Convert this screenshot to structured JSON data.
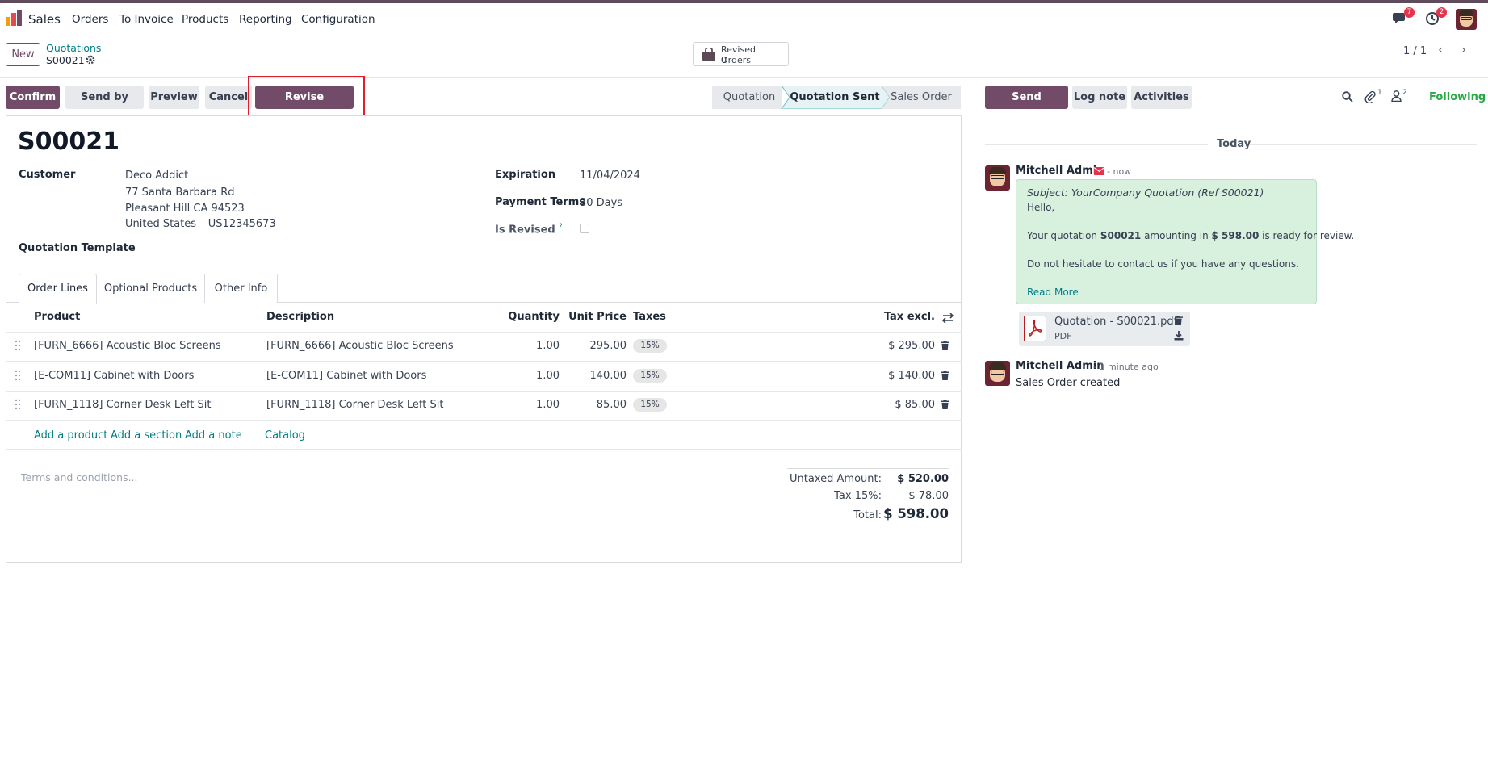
{
  "navbar": {
    "app_name": "Sales",
    "menu": [
      "Orders",
      "To Invoice",
      "Products",
      "Reporting",
      "Configuration"
    ],
    "messages_badge": "7",
    "activities_badge": "2"
  },
  "control_panel": {
    "new_label": "New",
    "breadcrumb_parent": "Quotations",
    "breadcrumb_current": "S00021",
    "smart_button_label": "Revised Orders",
    "smart_button_value": "0",
    "pager": "1 / 1"
  },
  "actions": {
    "confirm": "Confirm",
    "send_by_email": "Send by Email",
    "preview": "Preview",
    "cancel": "Cancel",
    "revise_quotation": "Revise Quotation"
  },
  "statusbar": [
    "Quotation",
    "Quotation Sent",
    "Sales Order"
  ],
  "form": {
    "title": "S00021",
    "customer_label": "Customer",
    "customer_name": "Deco Addict",
    "address_1": "77 Santa Barbara Rd",
    "address_2": "Pleasant Hill CA 94523",
    "address_3": "United States – US12345673",
    "template_label": "Quotation Template",
    "expiration_label": "Expiration",
    "expiration_value": "11/04/2024",
    "payment_terms_label": "Payment Terms",
    "payment_terms_value": "30 Days",
    "is_revised_label": "Is Revised",
    "help_mark": "?"
  },
  "tabs": [
    "Order Lines",
    "Optional Products",
    "Other Info"
  ],
  "table": {
    "headers": [
      "Product",
      "Description",
      "Quantity",
      "Unit Price",
      "Taxes",
      "Tax excl."
    ],
    "rows": [
      {
        "product": "[FURN_6666] Acoustic Bloc Screens",
        "description": "[FURN_6666] Acoustic Bloc Screens",
        "quantity": "1.00",
        "unit_price": "295.00",
        "tax": "15%",
        "subtotal": "$ 295.00"
      },
      {
        "product": "[E-COM11] Cabinet with Doors",
        "description": "[E-COM11] Cabinet with Doors",
        "quantity": "1.00",
        "unit_price": "140.00",
        "tax": "15%",
        "subtotal": "$ 140.00"
      },
      {
        "product": "[FURN_1118] Corner Desk Left Sit",
        "description": "[FURN_1118] Corner Desk Left Sit",
        "quantity": "1.00",
        "unit_price": "85.00",
        "tax": "15%",
        "subtotal": "$ 85.00"
      }
    ],
    "add_product": "Add a product",
    "add_section": "Add a section",
    "add_note": "Add a note",
    "catalog": "Catalog"
  },
  "footer": {
    "terms_placeholder": "Terms and conditions...",
    "untaxed_label": "Untaxed Amount:",
    "untaxed_value": "$ 520.00",
    "tax_label": "Tax 15%:",
    "tax_value": "$ 78.00",
    "total_label": "Total:",
    "total_value": "$ 598.00"
  },
  "chatter": {
    "send_message": "Send message",
    "log_note": "Log note",
    "activities": "Activities",
    "attachments_count": "1",
    "followers_count": "2",
    "following": "Following",
    "today": "Today",
    "message1": {
      "author": "Mitchell Admin",
      "time": "- now",
      "subject": "Subject: YourCompany Quotation (Ref S00021)",
      "greeting": "Hello,",
      "body_pre": "Your quotation ",
      "body_ref": "S00021",
      "body_mid": " amounting in ",
      "body_amount": "$ 598.00",
      "body_post": " is ready for review.",
      "body_2": "Do not hesitate to contact us if you have any questions.",
      "read_more": "Read More",
      "attachment_name": "Quotation - S00021.pdf",
      "attachment_type": "PDF"
    },
    "message2": {
      "author": "Mitchell Admin",
      "time": "- 1 minute ago",
      "body": "Sales Order created"
    }
  }
}
